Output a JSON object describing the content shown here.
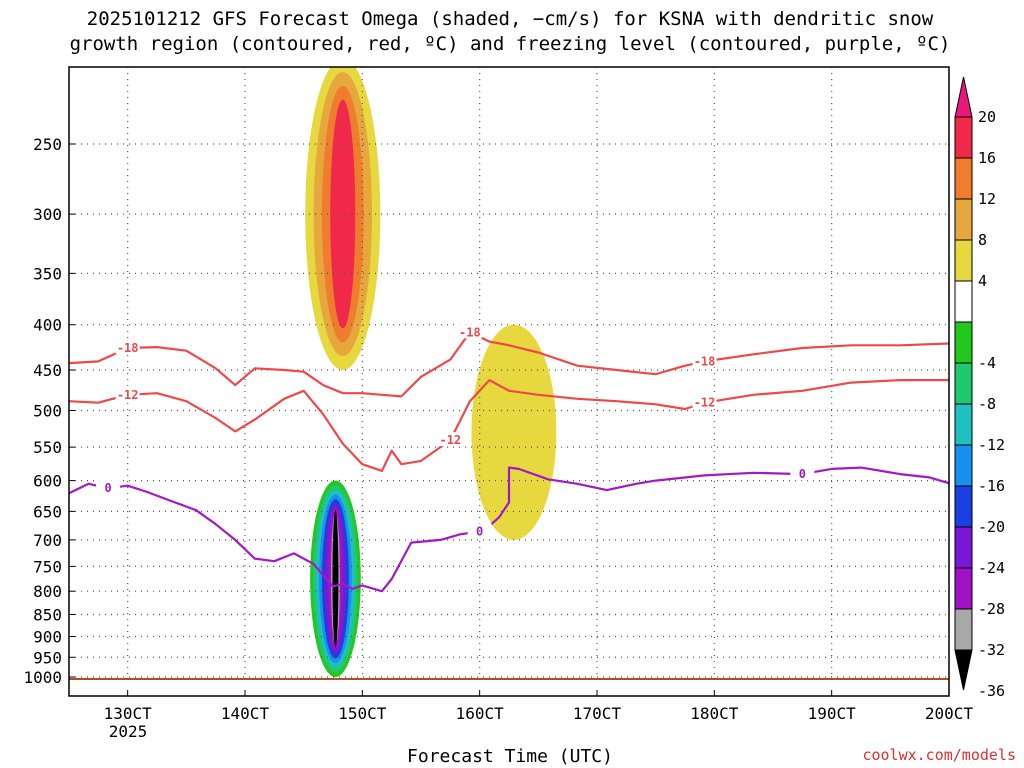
{
  "chart_data": {
    "type": "heatmap",
    "title_line1": "2025101212 GFS Forecast Omega (shaded, −cm/s) for KSNA with dendritic snow",
    "title_line2": "growth region (contoured, red, ºC) and freezing level (contoured, purple, ºC)",
    "xlabel": "Forecast Time (UTC)",
    "credit": "coolwx.com/models",
    "x_ticks": [
      {
        "label": "130CT",
        "hour": 12
      },
      {
        "label": "140CT",
        "hour": 36
      },
      {
        "label": "150CT",
        "hour": 60
      },
      {
        "label": "160CT",
        "hour": 84
      },
      {
        "label": "170CT",
        "hour": 108
      },
      {
        "label": "180CT",
        "hour": 132
      },
      {
        "label": "190CT",
        "hour": 156
      },
      {
        "label": "200CT",
        "hour": 180
      }
    ],
    "x_year_label": "2025",
    "xlim_hours": [
      0,
      180
    ],
    "y_ticks": [
      250,
      300,
      350,
      400,
      450,
      500,
      550,
      600,
      650,
      700,
      750,
      800,
      850,
      900,
      950,
      1000
    ],
    "ylim_hPa": [
      200,
      1010
    ],
    "colorbar": {
      "labels": [
        "20",
        "16",
        "12",
        "8",
        "4",
        "-4",
        "-8",
        "-12",
        "-16",
        "-20",
        "-24",
        "-28",
        "-32",
        "-36"
      ],
      "bands": [
        {
          "from": 16,
          "to": 20,
          "color": "#f0284a"
        },
        {
          "from": 12,
          "to": 16,
          "color": "#f07c30"
        },
        {
          "from": 8,
          "to": 12,
          "color": "#e6a83c"
        },
        {
          "from": 4,
          "to": 8,
          "color": "#e8d840"
        },
        {
          "from": -4,
          "to": 4,
          "color": "#ffffff"
        },
        {
          "from": -8,
          "to": -4,
          "color": "#22c81e"
        },
        {
          "from": -12,
          "to": -8,
          "color": "#20c870"
        },
        {
          "from": -16,
          "to": -12,
          "color": "#1fc0c0"
        },
        {
          "from": -20,
          "to": -16,
          "color": "#1890f0"
        },
        {
          "from": -24,
          "to": -20,
          "color": "#1a40e0"
        },
        {
          "from": -28,
          "to": -24,
          "color": "#7a18d8"
        },
        {
          "from": -32,
          "to": -28,
          "color": "#a012c8"
        },
        {
          "from": -36,
          "to": -32,
          "color": "#a8a8a8"
        }
      ],
      "top_arrow_color": "#e8187a",
      "bottom_arrow_color": "#000000"
    },
    "series": [
      {
        "name": "-18 ºC isotherm",
        "color": "#f0484a",
        "label": "-18",
        "hours": [
          0,
          6,
          12,
          18,
          24,
          30,
          34,
          38,
          44,
          48,
          52,
          56,
          60,
          64,
          68,
          72,
          78,
          82,
          86,
          90,
          96,
          104,
          112,
          120,
          126,
          130,
          140,
          150,
          160,
          170,
          180
        ],
        "pressure": [
          442,
          440,
          425,
          424,
          428,
          448,
          468,
          448,
          450,
          452,
          468,
          478,
          478,
          480,
          482,
          458,
          438,
          408,
          418,
          422,
          430,
          445,
          450,
          455,
          445,
          440,
          432,
          425,
          422,
          422,
          420
        ]
      },
      {
        "name": "-12 ºC isotherm",
        "color": "#f0484a",
        "label": "-12",
        "hours": [
          0,
          6,
          12,
          18,
          24,
          30,
          34,
          38,
          44,
          48,
          52,
          56,
          60,
          64,
          66,
          68,
          72,
          78,
          82,
          86,
          90,
          96,
          104,
          112,
          120,
          126,
          130,
          140,
          150,
          160,
          170,
          180
        ],
        "pressure": [
          488,
          490,
          480,
          478,
          488,
          510,
          528,
          512,
          485,
          475,
          505,
          545,
          575,
          585,
          555,
          575,
          570,
          540,
          488,
          462,
          475,
          480,
          485,
          488,
          492,
          498,
          490,
          480,
          475,
          465,
          462,
          462
        ]
      },
      {
        "name": "0 ºC freezing level",
        "color": "#a01ac8",
        "label": "0",
        "hours": [
          0,
          4,
          8,
          12,
          16,
          20,
          26,
          30,
          34,
          38,
          42,
          46,
          50,
          54,
          56,
          58,
          60,
          64,
          66,
          70,
          76,
          80,
          84,
          86,
          88,
          90,
          90,
          92,
          98,
          104,
          110,
          116,
          120,
          130,
          140,
          150,
          156,
          162,
          170,
          176,
          180
        ],
        "pressure": [
          620,
          605,
          612,
          608,
          618,
          630,
          648,
          672,
          700,
          735,
          740,
          725,
          745,
          790,
          785,
          795,
          788,
          800,
          775,
          705,
          700,
          690,
          685,
          675,
          660,
          635,
          580,
          582,
          598,
          605,
          615,
          605,
          600,
          592,
          588,
          590,
          582,
          580,
          590,
          595,
          604
        ]
      }
    ],
    "omega_regions": [
      {
        "name": "upper-level ascent core",
        "hours": [
          52,
          60
        ],
        "pressure_hPa": [
          200,
          450
        ],
        "max_value": 20
      },
      {
        "name": "low-level subsidence column",
        "hours": [
          53,
          56
        ],
        "pressure_hPa": [
          600,
          1000
        ],
        "min_value": -36
      },
      {
        "name": "weak ascent east of front",
        "hours": [
          86,
          96
        ],
        "pressure_hPa": [
          400,
          700
        ],
        "max_value": 8
      }
    ],
    "ground_color": "#a8522a"
  }
}
